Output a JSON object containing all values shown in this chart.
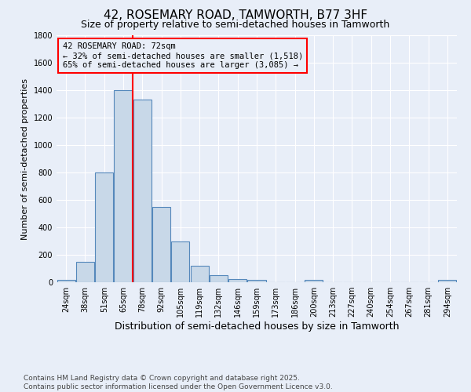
{
  "title1": "42, ROSEMARY ROAD, TAMWORTH, B77 3HF",
  "title2": "Size of property relative to semi-detached houses in Tamworth",
  "xlabel": "Distribution of semi-detached houses by size in Tamworth",
  "ylabel": "Number of semi-detached properties",
  "footnote1": "Contains HM Land Registry data © Crown copyright and database right 2025.",
  "footnote2": "Contains public sector information licensed under the Open Government Licence v3.0.",
  "bin_labels": [
    "24sqm",
    "38sqm",
    "51sqm",
    "65sqm",
    "78sqm",
    "92sqm",
    "105sqm",
    "119sqm",
    "132sqm",
    "146sqm",
    "159sqm",
    "173sqm",
    "186sqm",
    "200sqm",
    "213sqm",
    "227sqm",
    "240sqm",
    "254sqm",
    "267sqm",
    "281sqm",
    "294sqm"
  ],
  "bar_values": [
    20,
    150,
    800,
    1400,
    1330,
    550,
    295,
    120,
    50,
    25,
    20,
    0,
    0,
    15,
    0,
    0,
    0,
    0,
    0,
    0,
    15
  ],
  "bar_color": "#c8d8e8",
  "bar_edge_color": "#5588bb",
  "ylim": [
    0,
    1800
  ],
  "yticks": [
    0,
    200,
    400,
    600,
    800,
    1000,
    1200,
    1400,
    1600,
    1800
  ],
  "red_line_bin_index": 3.5,
  "annotation_title": "42 ROSEMARY ROAD: 72sqm",
  "annotation_line1": "← 32% of semi-detached houses are smaller (1,518)",
  "annotation_line2": "65% of semi-detached houses are larger (3,085) →",
  "background_color": "#e8eef8",
  "grid_color": "#ffffff",
  "title1_fontsize": 11,
  "title2_fontsize": 9,
  "xlabel_fontsize": 9,
  "ylabel_fontsize": 8,
  "tick_fontsize": 7,
  "annotation_fontsize": 7.5,
  "footnote_fontsize": 6.5
}
